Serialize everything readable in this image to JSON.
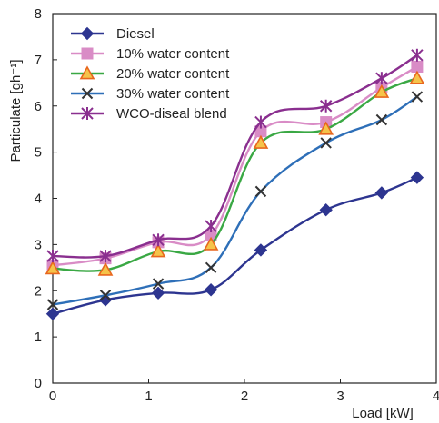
{
  "chart_data": {
    "type": "line",
    "xlabel": "Load [kW]",
    "ylabel": "Particulate [gh⁻¹]",
    "xlim": [
      0,
      4
    ],
    "ylim": [
      0,
      8
    ],
    "xticks": [
      0,
      1,
      2,
      3,
      4
    ],
    "yticks": [
      0,
      1,
      2,
      3,
      4,
      5,
      6,
      7,
      8
    ],
    "grid": false,
    "legend_position": "top-left",
    "x": [
      0,
      0.55,
      1.1,
      1.65,
      2.17,
      2.85,
      3.43,
      3.8
    ],
    "series": [
      {
        "name": "Diesel",
        "color": "#2d3590",
        "marker": "diamond",
        "values": [
          1.5,
          1.8,
          1.95,
          2.02,
          2.88,
          3.75,
          4.12,
          4.45
        ]
      },
      {
        "name": "10% water content",
        "color": "#d98cc6",
        "marker": "square",
        "values": [
          2.55,
          2.7,
          3.05,
          3.2,
          5.45,
          5.65,
          6.4,
          6.85
        ]
      },
      {
        "name": "20% water content",
        "color": "#3aa844",
        "marker": "triangle",
        "values": [
          2.48,
          2.45,
          2.85,
          3.0,
          5.2,
          5.5,
          6.3,
          6.6
        ]
      },
      {
        "name": "30% water content",
        "color": "#2e6fb8",
        "marker": "x",
        "values": [
          1.7,
          1.9,
          2.15,
          2.5,
          4.15,
          5.2,
          5.7,
          6.2
        ]
      },
      {
        "name": "WCO-diseal blend",
        "color": "#8a2f8f",
        "marker": "star",
        "values": [
          2.75,
          2.75,
          3.1,
          3.4,
          5.65,
          6.0,
          6.6,
          7.1
        ]
      }
    ]
  }
}
